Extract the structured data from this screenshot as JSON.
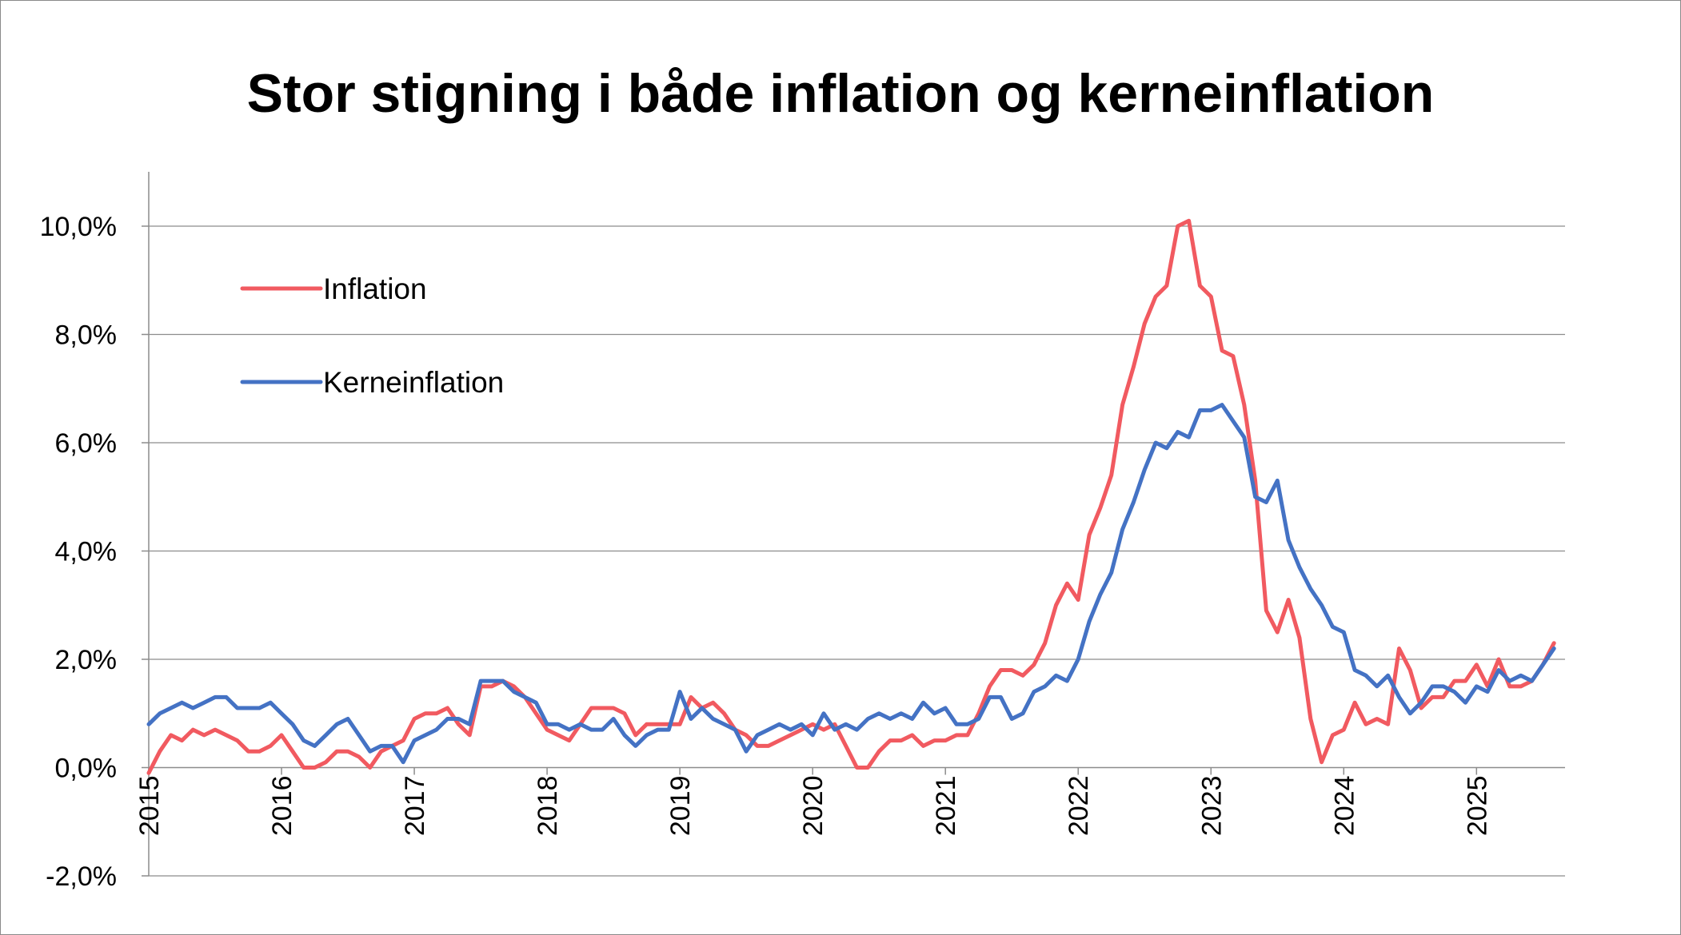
{
  "chart_data": {
    "type": "line",
    "title": "Stor stigning i både inflation og kerneinflation",
    "xlabel": "",
    "ylabel": "",
    "ylim": [
      -2,
      10
    ],
    "yticks": [
      -2,
      0,
      2,
      4,
      6,
      8,
      10
    ],
    "ytick_labels": [
      "-2,0%",
      "0,0%",
      "2,0%",
      "4,0%",
      "6,0%",
      "8,0%",
      "10,0%"
    ],
    "x_start": "2015-01",
    "xlim_months": [
      0,
      128
    ],
    "xtick_labels": [
      "2015",
      "2016",
      "2017",
      "2018",
      "2019",
      "2020",
      "2021",
      "2022",
      "2023",
      "2024",
      "2025"
    ],
    "grid": "horizontal",
    "legend_position": "top-left",
    "series": [
      {
        "name": "Inflation",
        "color": "#f15a60",
        "values": [
          -0.1,
          0.3,
          0.6,
          0.5,
          0.7,
          0.6,
          0.7,
          0.6,
          0.5,
          0.3,
          0.3,
          0.4,
          0.6,
          0.3,
          0.0,
          0.0,
          0.1,
          0.3,
          0.3,
          0.2,
          0.0,
          0.3,
          0.4,
          0.5,
          0.9,
          1.0,
          1.0,
          1.1,
          0.8,
          0.6,
          1.5,
          1.5,
          1.6,
          1.5,
          1.3,
          1.0,
          0.7,
          0.6,
          0.5,
          0.8,
          1.1,
          1.1,
          1.1,
          1.0,
          0.6,
          0.8,
          0.8,
          0.8,
          0.8,
          1.3,
          1.1,
          1.2,
          1.0,
          0.7,
          0.6,
          0.4,
          0.4,
          0.5,
          0.6,
          0.7,
          0.8,
          0.7,
          0.8,
          0.4,
          0.0,
          0.0,
          0.3,
          0.5,
          0.5,
          0.6,
          0.4,
          0.5,
          0.5,
          0.6,
          0.6,
          1.0,
          1.5,
          1.8,
          1.8,
          1.7,
          1.9,
          2.3,
          3.0,
          3.4,
          3.1,
          4.3,
          4.8,
          5.4,
          6.7,
          7.4,
          8.2,
          8.7,
          8.9,
          10.0,
          10.1,
          8.9,
          8.7,
          7.7,
          7.6,
          6.7,
          5.3,
          2.9,
          2.5,
          3.1,
          2.4,
          0.9,
          0.1,
          0.6,
          0.7,
          1.2,
          0.8,
          0.9,
          0.8,
          2.2,
          1.8,
          1.1,
          1.3,
          1.3,
          1.6,
          1.6,
          1.9,
          1.5,
          2.0,
          1.5,
          1.5,
          1.6,
          1.9,
          2.3
        ]
      },
      {
        "name": "Kerneinflation",
        "color": "#4472c4",
        "values": [
          0.8,
          1.0,
          1.1,
          1.2,
          1.1,
          1.2,
          1.3,
          1.3,
          1.1,
          1.1,
          1.1,
          1.2,
          1.0,
          0.8,
          0.5,
          0.4,
          0.6,
          0.8,
          0.9,
          0.6,
          0.3,
          0.4,
          0.4,
          0.1,
          0.5,
          0.6,
          0.7,
          0.9,
          0.9,
          0.8,
          1.6,
          1.6,
          1.6,
          1.4,
          1.3,
          1.2,
          0.8,
          0.8,
          0.7,
          0.8,
          0.7,
          0.7,
          0.9,
          0.6,
          0.4,
          0.6,
          0.7,
          0.7,
          1.4,
          0.9,
          1.1,
          0.9,
          0.8,
          0.7,
          0.3,
          0.6,
          0.7,
          0.8,
          0.7,
          0.8,
          0.6,
          1.0,
          0.7,
          0.8,
          0.7,
          0.9,
          1.0,
          0.9,
          1.0,
          0.9,
          1.2,
          1.0,
          1.1,
          0.8,
          0.8,
          0.9,
          1.3,
          1.3,
          0.9,
          1.0,
          1.4,
          1.5,
          1.7,
          1.6,
          2.0,
          2.7,
          3.2,
          3.6,
          4.4,
          4.9,
          5.5,
          6.0,
          5.9,
          6.2,
          6.1,
          6.6,
          6.6,
          6.7,
          6.4,
          6.1,
          5.0,
          4.9,
          5.3,
          4.2,
          3.7,
          3.3,
          3.0,
          2.6,
          2.5,
          1.8,
          1.7,
          1.5,
          1.7,
          1.3,
          1.0,
          1.2,
          1.5,
          1.5,
          1.4,
          1.2,
          1.5,
          1.4,
          1.8,
          1.6,
          1.7,
          1.6,
          1.9,
          2.2
        ]
      }
    ]
  }
}
